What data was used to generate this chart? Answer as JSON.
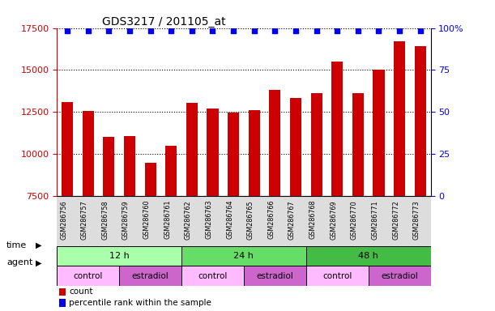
{
  "title": "GDS3217 / 201105_at",
  "samples": [
    "GSM286756",
    "GSM286757",
    "GSM286758",
    "GSM286759",
    "GSM286760",
    "GSM286761",
    "GSM286762",
    "GSM286763",
    "GSM286764",
    "GSM286765",
    "GSM286766",
    "GSM286767",
    "GSM286768",
    "GSM286769",
    "GSM286770",
    "GSM286771",
    "GSM286772",
    "GSM286773"
  ],
  "counts": [
    13100,
    12550,
    11000,
    11050,
    9500,
    10500,
    13050,
    12700,
    12450,
    12600,
    13800,
    13350,
    13600,
    15500,
    13600,
    15000,
    16700,
    16400
  ],
  "ylim_left": [
    7500,
    17500
  ],
  "ylim_right": [
    0,
    100
  ],
  "yticks_left": [
    7500,
    10000,
    12500,
    15000,
    17500
  ],
  "yticks_right": [
    0,
    25,
    50,
    75,
    100
  ],
  "bar_color": "#cc0000",
  "dot_color": "#0000ee",
  "grid_color": "#000000",
  "time_groups": [
    {
      "label": "12 h",
      "start": 0,
      "end": 6,
      "color": "#aaffaa"
    },
    {
      "label": "24 h",
      "start": 6,
      "end": 12,
      "color": "#66dd66"
    },
    {
      "label": "48 h",
      "start": 12,
      "end": 18,
      "color": "#44bb44"
    }
  ],
  "agent_groups": [
    {
      "label": "control",
      "start": 0,
      "end": 3,
      "color": "#ffbbff"
    },
    {
      "label": "estradiol",
      "start": 3,
      "end": 6,
      "color": "#cc66cc"
    },
    {
      "label": "control",
      "start": 6,
      "end": 9,
      "color": "#ffbbff"
    },
    {
      "label": "estradiol",
      "start": 9,
      "end": 12,
      "color": "#cc66cc"
    },
    {
      "label": "control",
      "start": 12,
      "end": 15,
      "color": "#ffbbff"
    },
    {
      "label": "estradiol",
      "start": 15,
      "end": 18,
      "color": "#cc66cc"
    }
  ],
  "legend_count_color": "#cc0000",
  "legend_dot_color": "#0000ee",
  "title_color": "#000000",
  "left_tick_color": "#cc0000",
  "right_tick_color": "#0000ee",
  "bg_color": "#ffffff",
  "row_label_time": "time",
  "row_label_agent": "agent"
}
